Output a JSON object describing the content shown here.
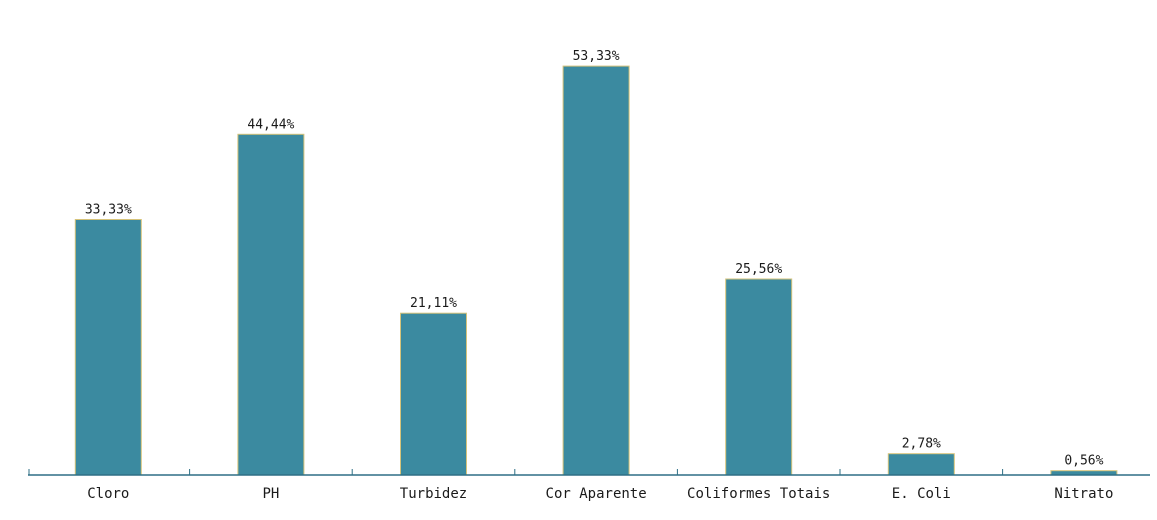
{
  "chart_data": {
    "type": "bar",
    "categories": [
      "Cloro",
      "PH",
      "Turbidez",
      "Cor Aparente",
      "Coliformes Totais",
      "E. Coli",
      "Nitrato"
    ],
    "values": [
      33.33,
      44.44,
      21.11,
      53.33,
      25.56,
      2.78,
      0.56
    ],
    "value_labels": [
      "33,33%",
      "44,44%",
      "21,11%",
      "53,33%",
      "25,56%",
      "2,78%",
      "0,56%"
    ],
    "ylim": [
      0,
      60
    ],
    "grid": false,
    "legend": "none"
  },
  "colors": {
    "bar_fill": "#3b8aa0",
    "bar_stroke": "#d6c37a",
    "axis": "#2e6f85"
  }
}
